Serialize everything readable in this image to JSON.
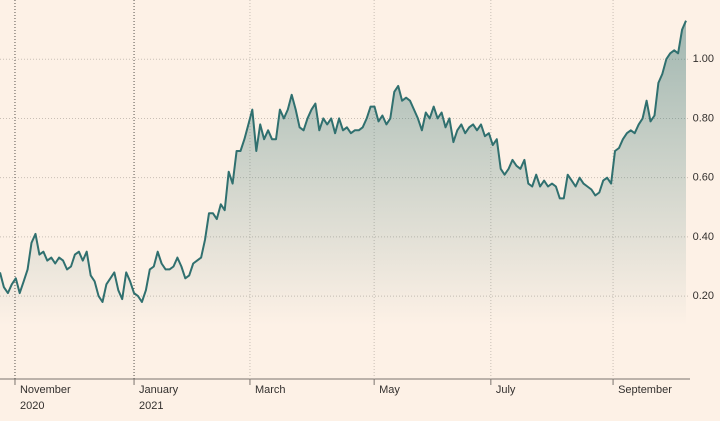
{
  "chart_data": {
    "type": "line",
    "series": [
      {
        "color": "#30706f",
        "values": [
          0.28,
          0.23,
          0.21,
          0.24,
          0.26,
          0.21,
          0.25,
          0.29,
          0.38,
          0.41,
          0.34,
          0.35,
          0.32,
          0.33,
          0.31,
          0.33,
          0.32,
          0.29,
          0.3,
          0.34,
          0.35,
          0.32,
          0.35,
          0.27,
          0.25,
          0.2,
          0.18,
          0.24,
          0.26,
          0.28,
          0.22,
          0.19,
          0.28,
          0.25,
          0.21,
          0.2,
          0.18,
          0.22,
          0.29,
          0.3,
          0.35,
          0.31,
          0.29,
          0.29,
          0.3,
          0.33,
          0.3,
          0.26,
          0.27,
          0.31,
          0.32,
          0.33,
          0.39,
          0.48,
          0.48,
          0.46,
          0.51,
          0.49,
          0.62,
          0.58,
          0.69,
          0.69,
          0.73,
          0.78,
          0.83,
          0.69,
          0.78,
          0.73,
          0.76,
          0.73,
          0.73,
          0.83,
          0.8,
          0.83,
          0.88,
          0.83,
          0.77,
          0.76,
          0.8,
          0.83,
          0.85,
          0.76,
          0.8,
          0.78,
          0.8,
          0.75,
          0.8,
          0.76,
          0.77,
          0.75,
          0.76,
          0.76,
          0.77,
          0.8,
          0.84,
          0.84,
          0.79,
          0.81,
          0.78,
          0.8,
          0.89,
          0.91,
          0.86,
          0.87,
          0.86,
          0.83,
          0.8,
          0.76,
          0.82,
          0.8,
          0.84,
          0.8,
          0.82,
          0.77,
          0.8,
          0.72,
          0.76,
          0.78,
          0.75,
          0.77,
          0.78,
          0.76,
          0.78,
          0.74,
          0.75,
          0.71,
          0.73,
          0.63,
          0.61,
          0.63,
          0.66,
          0.64,
          0.63,
          0.66,
          0.58,
          0.57,
          0.61,
          0.57,
          0.59,
          0.57,
          0.58,
          0.57,
          0.53,
          0.53,
          0.61,
          0.59,
          0.57,
          0.6,
          0.58,
          0.57,
          0.56,
          0.54,
          0.55,
          0.59,
          0.6,
          0.58,
          0.69,
          0.7,
          0.73,
          0.75,
          0.76,
          0.75,
          0.78,
          0.8,
          0.86,
          0.79,
          0.81,
          0.92,
          0.95,
          1.0,
          1.02,
          1.03,
          1.02,
          1.1,
          1.13
        ]
      }
    ],
    "xlim": [
      0,
      174
    ],
    "xticks": [
      {
        "value": 3.8,
        "label": "November",
        "year": "2020"
      },
      {
        "value": 34,
        "label": "January",
        "year": "2021"
      },
      {
        "value": 63.4,
        "label": "March"
      },
      {
        "value": 94.9,
        "label": "May"
      },
      {
        "value": 124.5,
        "label": "July"
      },
      {
        "value": 155.5,
        "label": "September"
      }
    ],
    "ylim": [
      -0.08,
      1.2
    ],
    "yticks": [
      {
        "value": 0.2,
        "label": "0.20"
      },
      {
        "value": 0.4,
        "label": "0.40"
      },
      {
        "value": 0.6,
        "label": "0.60"
      },
      {
        "value": 0.8,
        "label": "0.80"
      },
      {
        "value": 1.0,
        "label": "1.00"
      }
    ],
    "grid": true
  }
}
